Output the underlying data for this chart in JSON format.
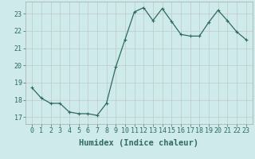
{
  "x": [
    0,
    1,
    2,
    3,
    4,
    5,
    6,
    7,
    8,
    9,
    10,
    11,
    12,
    13,
    14,
    15,
    16,
    17,
    18,
    19,
    20,
    21,
    22,
    23
  ],
  "y": [
    18.7,
    18.1,
    17.8,
    17.8,
    17.3,
    17.2,
    17.2,
    17.1,
    17.8,
    19.9,
    21.5,
    23.1,
    23.35,
    22.6,
    23.3,
    22.55,
    21.8,
    21.7,
    21.7,
    22.5,
    23.2,
    22.6,
    21.95,
    21.5
  ],
  "xlabel": "Humidex (Indice chaleur)",
  "ylim": [
    16.6,
    23.7
  ],
  "yticks": [
    17,
    18,
    19,
    20,
    21,
    22,
    23
  ],
  "xticks": [
    0,
    1,
    2,
    3,
    4,
    5,
    6,
    7,
    8,
    9,
    10,
    11,
    12,
    13,
    14,
    15,
    16,
    17,
    18,
    19,
    20,
    21,
    22,
    23
  ],
  "line_color": "#2e6b5e",
  "marker": "P",
  "marker_size": 2.5,
  "bg_color": "#ceeaea",
  "grid_color": "#c0c8c8",
  "label_fontsize": 7.5,
  "tick_fontsize": 6.0
}
